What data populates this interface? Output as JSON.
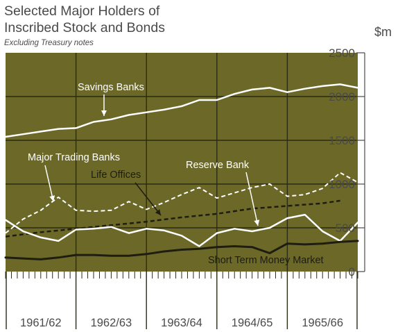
{
  "header": {
    "title_line1": "Selected Major Holders of",
    "title_line2": "Inscribed Stock and Bonds",
    "subtitle": "Excluding Treasury notes"
  },
  "colors": {
    "plot_background": "#6b6828",
    "gridline": "#2b2a12",
    "white_series": "#ffffff",
    "dark_series": "#1e1d10",
    "text": "#4a4a4a"
  },
  "chart_data": {
    "type": "line",
    "unit_label": "$m",
    "ylim": [
      0,
      2500
    ],
    "y_ticks": [
      0,
      500,
      1000,
      1500,
      2000,
      2500
    ],
    "y_tick_labels": [
      "0",
      "500",
      "1000",
      "1500",
      "2000",
      "2500"
    ],
    "x_range": [
      0,
      5
    ],
    "x_gridlines": [
      1,
      2,
      3,
      4
    ],
    "categories": [
      "1961/62",
      "1962/63",
      "1963/64",
      "1964/65",
      "1965/66"
    ],
    "grid": true,
    "series": [
      {
        "name": "Savings Banks",
        "style": "solid",
        "color": "white",
        "width": 2.5,
        "x": [
          0,
          0.25,
          0.5,
          0.75,
          1.0,
          1.25,
          1.5,
          1.75,
          2.0,
          2.25,
          2.5,
          2.75,
          3.0,
          3.25,
          3.5,
          3.75,
          4.0,
          4.25,
          4.5,
          4.75,
          5.0
        ],
        "values": [
          1540,
          1570,
          1600,
          1630,
          1640,
          1710,
          1740,
          1790,
          1820,
          1850,
          1890,
          1960,
          1960,
          2030,
          2080,
          2100,
          2050,
          2090,
          2120,
          2140,
          2100
        ]
      },
      {
        "name": "Major Trading Banks",
        "style": "dashed",
        "color": "white",
        "width": 2,
        "x": [
          0,
          0.25,
          0.5,
          0.75,
          1.0,
          1.25,
          1.5,
          1.75,
          2.0,
          2.25,
          2.5,
          2.75,
          3.0,
          3.25,
          3.5,
          3.75,
          4.0,
          4.25,
          4.5,
          4.75,
          5.0
        ],
        "values": [
          440,
          600,
          700,
          850,
          700,
          690,
          700,
          800,
          710,
          790,
          880,
          960,
          840,
          900,
          960,
          1000,
          860,
          880,
          950,
          1130,
          1020
        ]
      },
      {
        "name": "Life Offices",
        "style": "dashed",
        "color": "dark",
        "width": 2.5,
        "x": [
          0,
          0.5,
          1.0,
          1.5,
          2.0,
          2.5,
          3.0,
          3.5,
          4.0,
          4.5,
          4.75
        ],
        "values": [
          400,
          450,
          490,
          530,
          570,
          620,
          660,
          720,
          750,
          780,
          810
        ]
      },
      {
        "name": "Reserve Bank",
        "style": "solid",
        "color": "white",
        "width": 2.5,
        "x": [
          0,
          0.25,
          0.5,
          0.75,
          1.0,
          1.25,
          1.5,
          1.75,
          2.0,
          2.25,
          2.5,
          2.75,
          3.0,
          3.25,
          3.5,
          3.75,
          4.0,
          4.25,
          4.5,
          4.75,
          5.0
        ],
        "values": [
          590,
          460,
          390,
          350,
          480,
          490,
          510,
          440,
          490,
          470,
          410,
          290,
          440,
          490,
          460,
          500,
          610,
          650,
          460,
          350,
          560
        ]
      },
      {
        "name": "Short Term Money Market",
        "style": "solid",
        "color": "dark",
        "width": 3,
        "x": [
          0,
          0.25,
          0.5,
          0.75,
          1.0,
          1.25,
          1.5,
          1.75,
          2.0,
          2.25,
          2.5,
          2.75,
          3.0,
          3.25,
          3.5,
          3.75,
          4.0,
          4.25,
          4.5,
          4.75,
          5.0
        ],
        "values": [
          160,
          150,
          140,
          160,
          190,
          190,
          180,
          180,
          200,
          230,
          250,
          260,
          280,
          290,
          280,
          210,
          320,
          310,
          320,
          340,
          350
        ]
      }
    ],
    "annotations": [
      {
        "series": "Savings Banks",
        "text": "Savings Banks",
        "pointer": "white"
      },
      {
        "series": "Major Trading Banks",
        "text": "Major Trading Banks",
        "pointer": "white"
      },
      {
        "series": "Life Offices",
        "text": "Life Offices",
        "pointer": "dark"
      },
      {
        "series": "Reserve Bank",
        "text": "Reserve Bank",
        "pointer": "white"
      },
      {
        "series": "Short Term Money Market",
        "text": "Short Term Money Market",
        "pointer": "none"
      }
    ]
  }
}
